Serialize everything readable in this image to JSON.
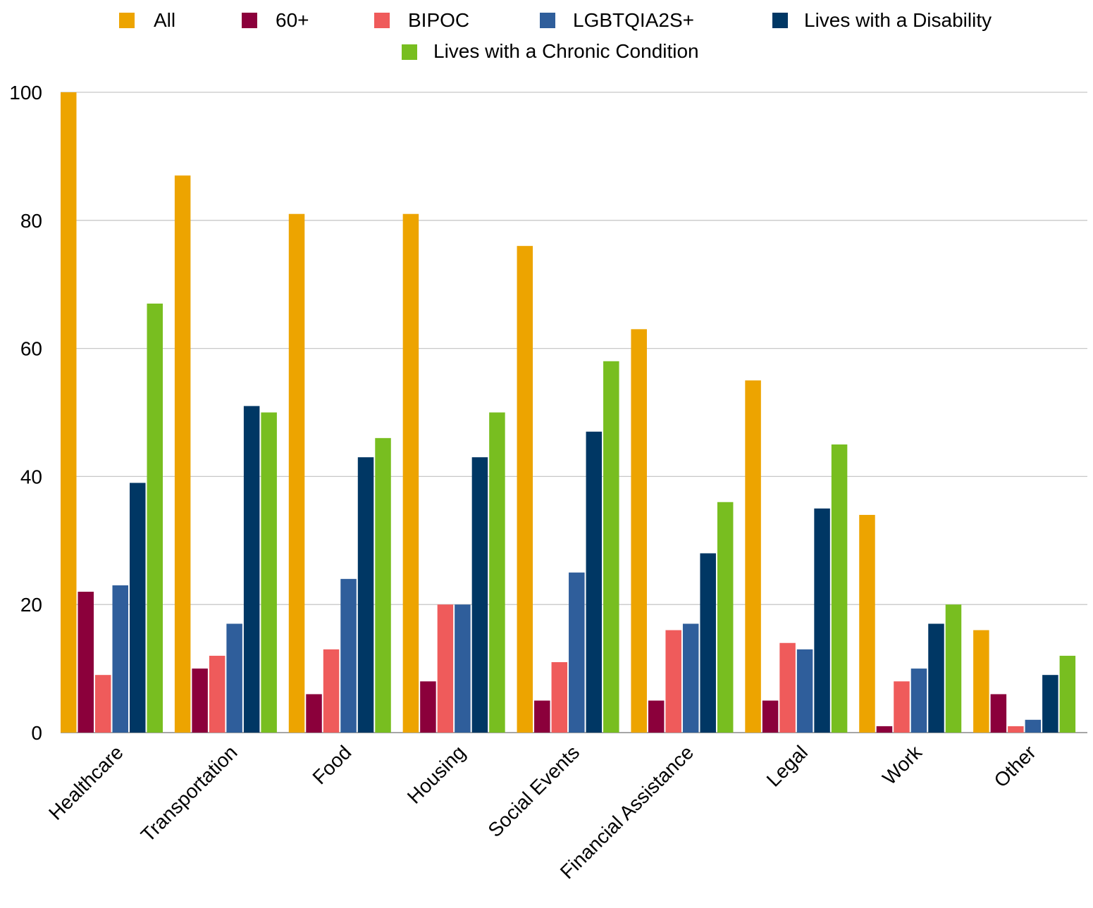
{
  "chart_data": {
    "type": "bar",
    "title": "",
    "xlabel": "",
    "ylabel": "",
    "ylim": [
      0,
      100
    ],
    "yticks": [
      0,
      20,
      40,
      60,
      80,
      100
    ],
    "grid": true,
    "legend_position": "top",
    "categories": [
      "Healthcare",
      "Transportation",
      "Food",
      "Housing",
      "Social Events",
      "Financial Assistance",
      "Legal",
      "Work",
      "Other"
    ],
    "series": [
      {
        "name": "All",
        "color": "#EDA400",
        "values": [
          100,
          87,
          81,
          81,
          76,
          63,
          55,
          34,
          16
        ]
      },
      {
        "name": "60+",
        "color": "#8B003B",
        "values": [
          22,
          10,
          6,
          8,
          5,
          5,
          5,
          1,
          6
        ]
      },
      {
        "name": "BIPOC",
        "color": "#EF5B5B",
        "values": [
          9,
          12,
          13,
          20,
          11,
          16,
          14,
          8,
          1
        ]
      },
      {
        "name": "LGBTQIA2S+",
        "color": "#2F5E9B",
        "values": [
          23,
          17,
          24,
          20,
          25,
          17,
          13,
          10,
          2
        ]
      },
      {
        "name": "Lives with a Disability",
        "color": "#003764",
        "values": [
          39,
          51,
          43,
          43,
          47,
          28,
          35,
          17,
          9
        ]
      },
      {
        "name": "Lives with a Chronic Condition",
        "color": "#78BE20",
        "values": [
          67,
          50,
          46,
          50,
          58,
          36,
          45,
          20,
          12
        ]
      }
    ]
  }
}
